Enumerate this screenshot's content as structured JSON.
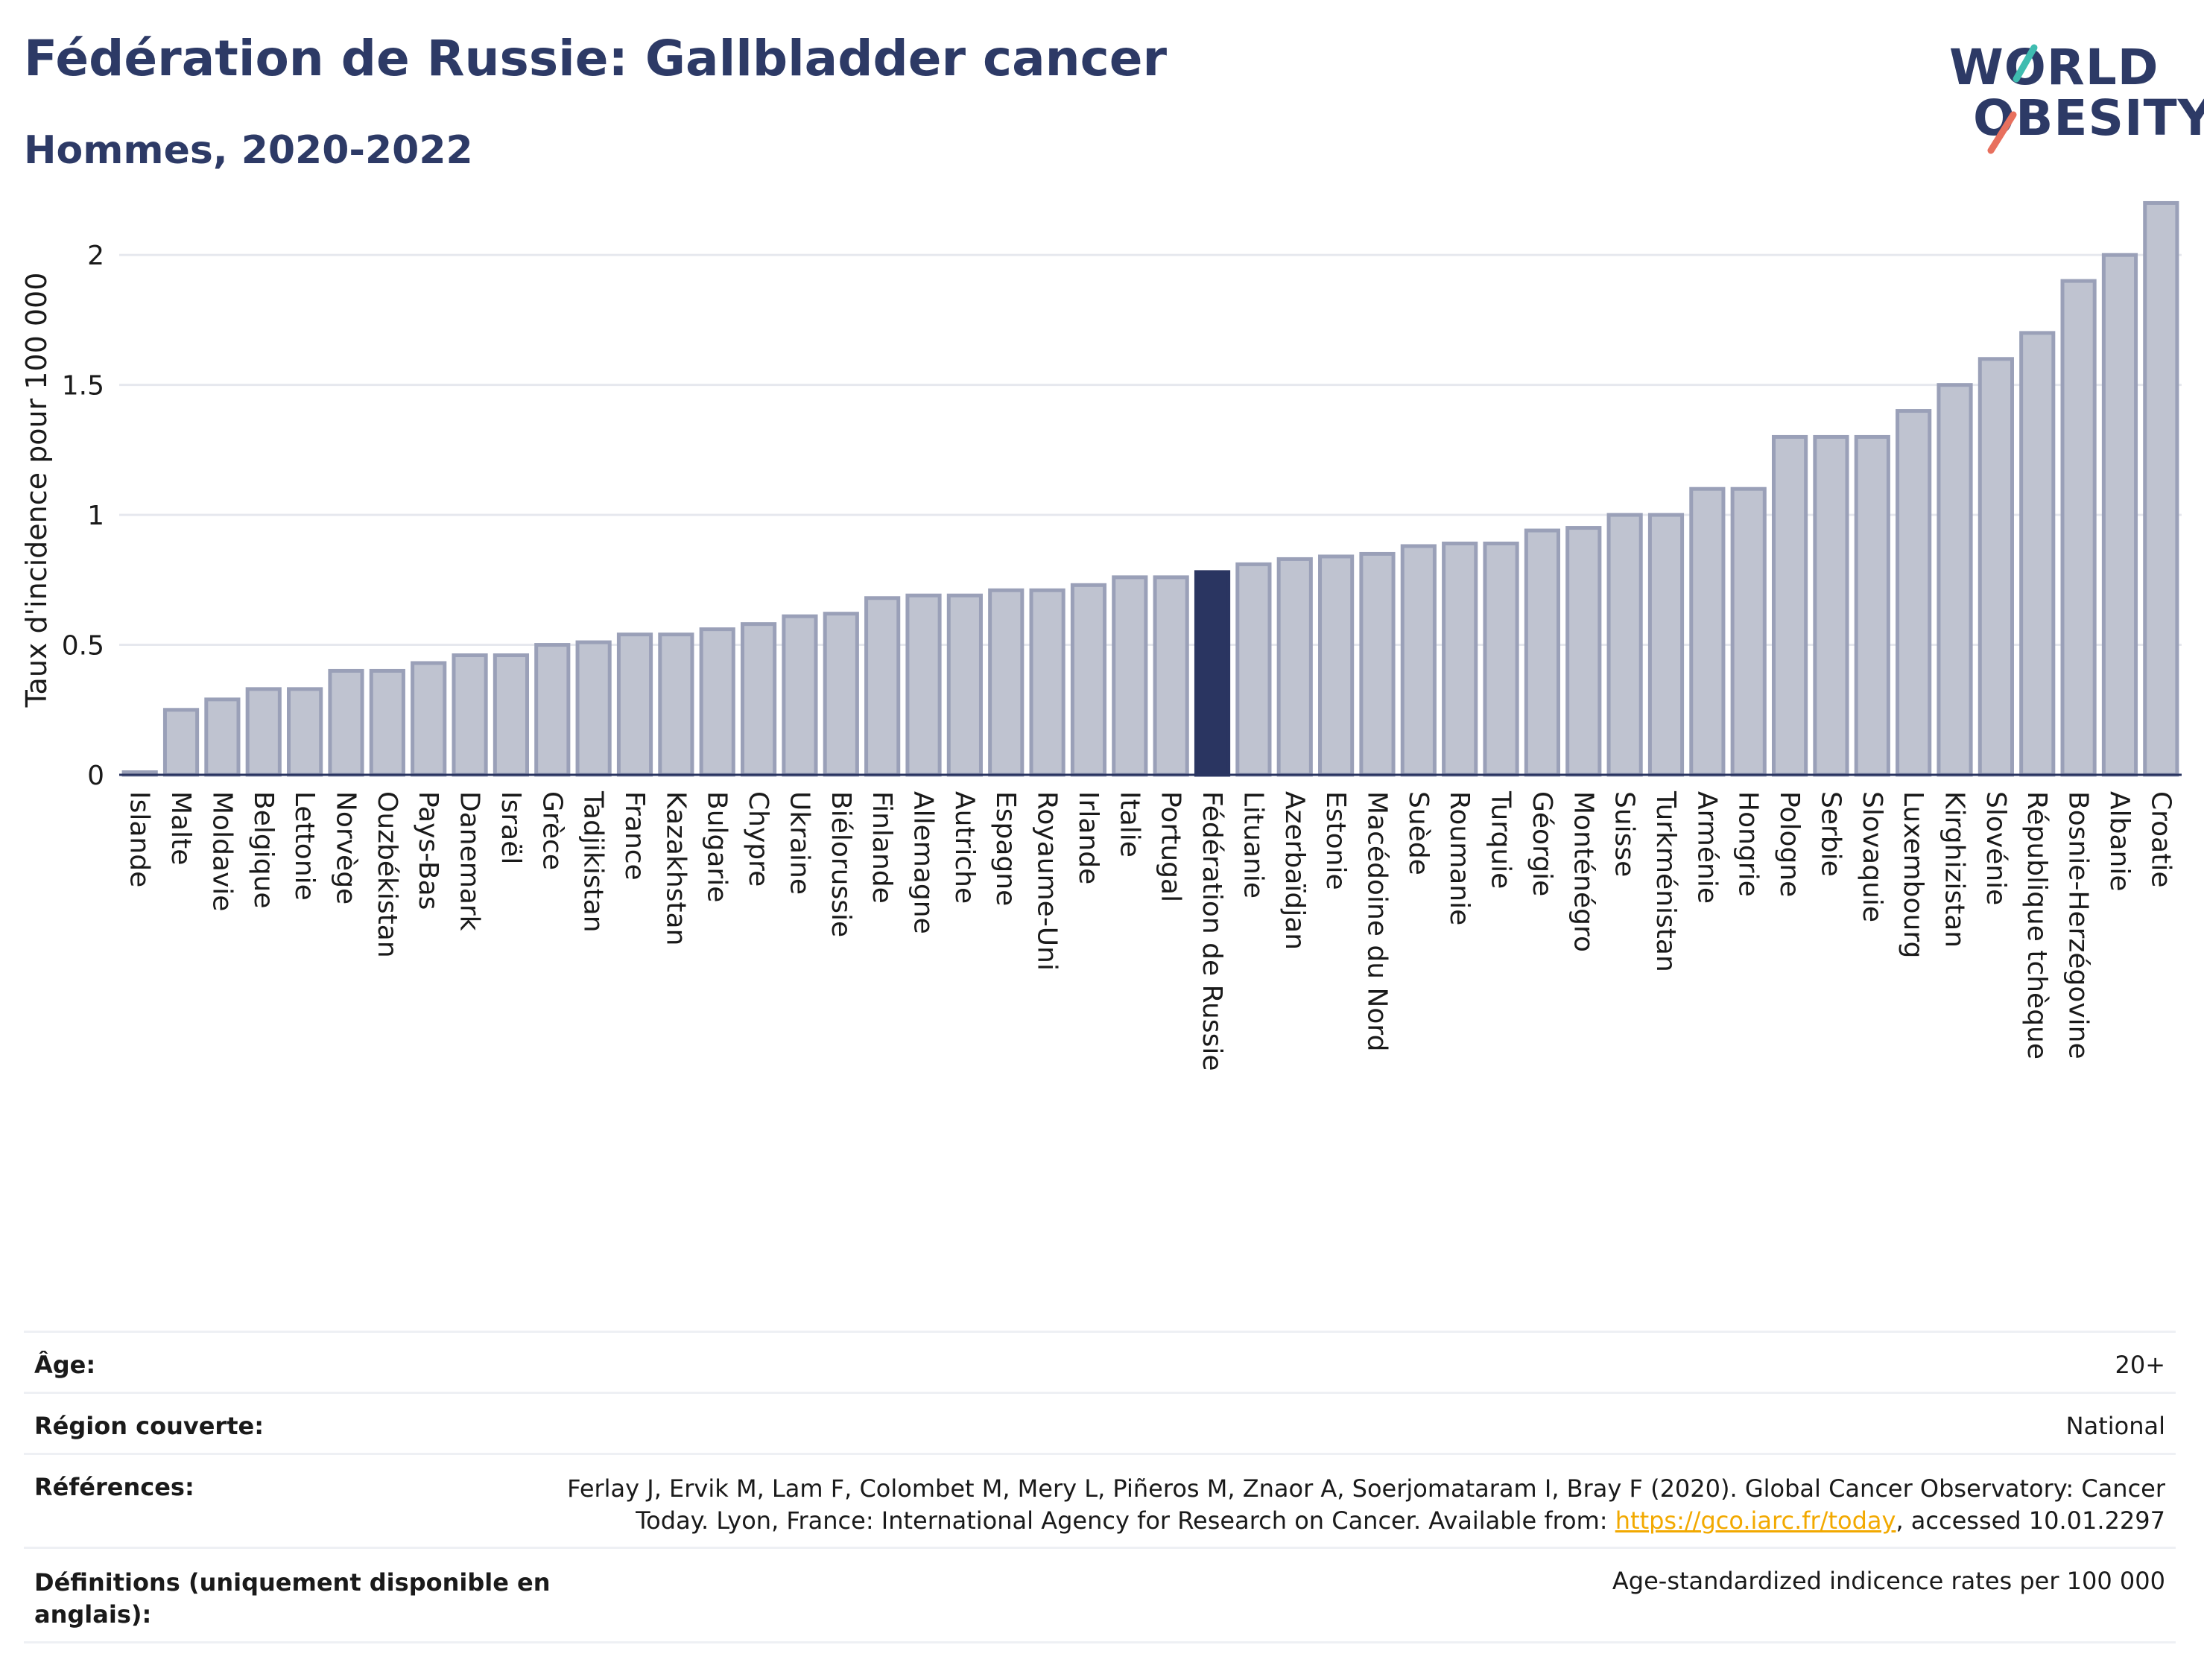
{
  "header": {
    "title": "Fédération de Russie: Gallbladder cancer",
    "subtitle": "Hommes, 2020-2022"
  },
  "logo": {
    "line1": "WORLD",
    "line2": "OBESITY"
  },
  "chart_data": {
    "type": "bar",
    "ylabel": "Taux d'incidence pour 100 000",
    "ylim": [
      0,
      2.25
    ],
    "yticks": [
      0,
      0.5,
      1,
      1.5,
      2
    ],
    "ytick_labels": [
      "0",
      "0.5",
      "1",
      "1.5",
      "2"
    ],
    "grid": true,
    "highlight": "Fédération de Russie",
    "colors": {
      "bar": "#bfc3d0",
      "bar_border": "#9aa0b8",
      "highlight": "#2a3561"
    },
    "categories": [
      "Islande",
      "Malte",
      "Moldavie",
      "Belgique",
      "Lettonie",
      "Norvège",
      "Ouzbékistan",
      "Pays-Bas",
      "Danemark",
      "Israël",
      "Grèce",
      "Tadjikistan",
      "France",
      "Kazakhstan",
      "Bulgarie",
      "Chypre",
      "Ukraine",
      "Biélorussie",
      "Finlande",
      "Allemagne",
      "Autriche",
      "Espagne",
      "Royaume-Uni",
      "Irlande",
      "Italie",
      "Portugal",
      "Fédération de Russie",
      "Lituanie",
      "Azerbaïdjan",
      "Estonie",
      "Macédoine du Nord",
      "Suède",
      "Roumanie",
      "Turquie",
      "Géorgie",
      "Monténégro",
      "Suisse",
      "Turkménistan",
      "Arménie",
      "Hongrie",
      "Pologne",
      "Serbie",
      "Slovaquie",
      "Luxembourg",
      "Kirghizistan",
      "Slovénie",
      "République tchèque",
      "Bosnie-Herzégovine",
      "Albanie",
      "Croatie"
    ],
    "values": [
      0.01,
      0.25,
      0.29,
      0.33,
      0.33,
      0.4,
      0.4,
      0.43,
      0.46,
      0.46,
      0.5,
      0.51,
      0.54,
      0.54,
      0.56,
      0.58,
      0.61,
      0.62,
      0.68,
      0.69,
      0.69,
      0.71,
      0.71,
      0.73,
      0.76,
      0.76,
      0.78,
      0.81,
      0.83,
      0.84,
      0.85,
      0.88,
      0.89,
      0.89,
      0.94,
      0.95,
      1.0,
      1.0,
      1.1,
      1.1,
      1.3,
      1.3,
      1.3,
      1.4,
      1.5,
      1.6,
      1.7,
      1.9,
      2.0,
      2.2
    ]
  },
  "info_table": {
    "age": {
      "label": "Âge:",
      "value": "20+"
    },
    "region": {
      "label": "Région couverte:",
      "value": "National"
    },
    "references": {
      "label": "Références:",
      "line1": "Ferlay J, Ervik M, Lam F, Colombet M, Mery L, Piñeros M, Znaor A, Soerjomataram I, Bray F (2020). Global Cancer Observatory: Cancer",
      "line2_pre": "Today. Lyon, France: International Agency for Research on Cancer. Available from: ",
      "link": "https://gco.iarc.fr/today",
      "line2_post": ", accessed 10.01.2297"
    },
    "definitions": {
      "label_line1": "Définitions (uniquement disponible en",
      "label_line2": "anglais):",
      "value": "Age-standardized indicence rates per 100 000"
    }
  }
}
